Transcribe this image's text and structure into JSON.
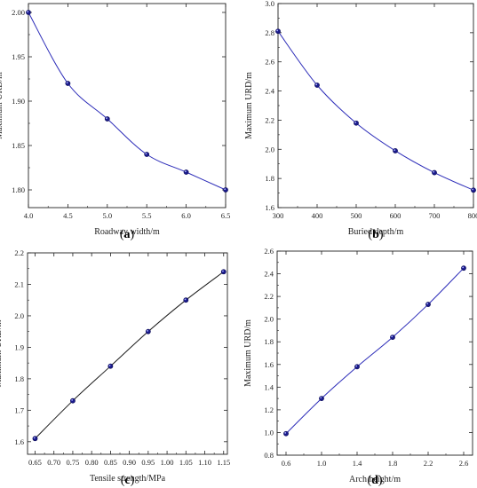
{
  "chart_data": [
    {
      "type": "line",
      "panel_label": "(a)",
      "xlabel": "Roadway width/m",
      "ylabel": "Maximum URD/m",
      "xlim": [
        4.0,
        6.5
      ],
      "ylim": [
        1.78,
        2.01
      ],
      "xticks": [
        "4.0",
        "4.5",
        "5.0",
        "5.5",
        "6.0",
        "6.5"
      ],
      "xtick_values": [
        4.0,
        4.5,
        5.0,
        5.5,
        6.0,
        6.5
      ],
      "yticks": [
        "1.80",
        "1.85",
        "1.90",
        "1.95",
        "2.00"
      ],
      "ytick_values": [
        1.8,
        1.85,
        1.9,
        1.95,
        2.0
      ],
      "x": [
        4.0,
        4.5,
        5.0,
        5.5,
        6.0,
        6.5
      ],
      "y": [
        2.0,
        1.92,
        1.88,
        1.84,
        1.82,
        1.8
      ],
      "line_color": "#2b2bb8",
      "marker_color": "#1a1a8c"
    },
    {
      "type": "line",
      "panel_label": "(b)",
      "xlabel": "Buried depth/m",
      "ylabel": "Maximum URD/m",
      "xlim": [
        300,
        800
      ],
      "ylim": [
        1.6,
        3.0
      ],
      "xticks": [
        "300",
        "400",
        "500",
        "600",
        "700",
        "800"
      ],
      "xtick_values": [
        300,
        400,
        500,
        600,
        700,
        800
      ],
      "yticks": [
        "1.6",
        "1.8",
        "2.0",
        "2.2",
        "2.4",
        "2.6",
        "2.8",
        "3.0"
      ],
      "ytick_values": [
        1.6,
        1.8,
        2.0,
        2.2,
        2.4,
        2.6,
        2.8,
        3.0
      ],
      "x": [
        300,
        400,
        500,
        600,
        700,
        800
      ],
      "y": [
        2.81,
        2.44,
        2.18,
        1.99,
        1.84,
        1.72
      ],
      "line_color": "#2b2bb8",
      "marker_color": "#1a1a8c"
    },
    {
      "type": "line",
      "panel_label": "(c)",
      "xlabel": "Tensile strength/MPa",
      "ylabel": "Maximum URD/m",
      "xlim": [
        0.63,
        1.16
      ],
      "ylim": [
        1.56,
        2.2
      ],
      "xticks": [
        "0.65",
        "0.70",
        "0.75",
        "0.80",
        "0.85",
        "0.90",
        "0.95",
        "1.00",
        "1.05",
        "1.10",
        "1.15"
      ],
      "xtick_values": [
        0.65,
        0.7,
        0.75,
        0.8,
        0.85,
        0.9,
        0.95,
        1.0,
        1.05,
        1.1,
        1.15
      ],
      "yticks": [
        "1.6",
        "1.7",
        "1.8",
        "1.9",
        "2.0",
        "2.1",
        "2.2"
      ],
      "ytick_values": [
        1.6,
        1.7,
        1.8,
        1.9,
        2.0,
        2.1,
        2.2
      ],
      "x": [
        0.65,
        0.75,
        0.85,
        0.95,
        1.05,
        1.15
      ],
      "y": [
        1.61,
        1.73,
        1.84,
        1.95,
        2.05,
        2.14
      ],
      "line_color": "#1a1a1a",
      "marker_color": "#1a1a8c"
    },
    {
      "type": "line",
      "panel_label": "(d)",
      "xlabel": "Arch height/m",
      "ylabel": "Maximum URD/m",
      "xlim": [
        0.5,
        2.7
      ],
      "ylim": [
        0.8,
        2.6
      ],
      "xticks": [
        "0.6",
        "1.0",
        "1.4",
        "1.8",
        "2.2",
        "2.6"
      ],
      "xtick_values": [
        0.6,
        1.0,
        1.4,
        1.8,
        2.2,
        2.6
      ],
      "yticks": [
        "0.8",
        "1.0",
        "1.2",
        "1.4",
        "1.6",
        "1.8",
        "2.0",
        "2.2",
        "2.4",
        "2.6"
      ],
      "ytick_values": [
        0.8,
        1.0,
        1.2,
        1.4,
        1.6,
        1.8,
        2.0,
        2.2,
        2.4,
        2.6
      ],
      "x": [
        0.6,
        1.0,
        1.4,
        1.8,
        2.2,
        2.6
      ],
      "y": [
        0.99,
        1.3,
        1.58,
        1.84,
        2.13,
        2.45
      ],
      "line_color": "#2b2bb8",
      "marker_color": "#1a1a8c"
    }
  ]
}
